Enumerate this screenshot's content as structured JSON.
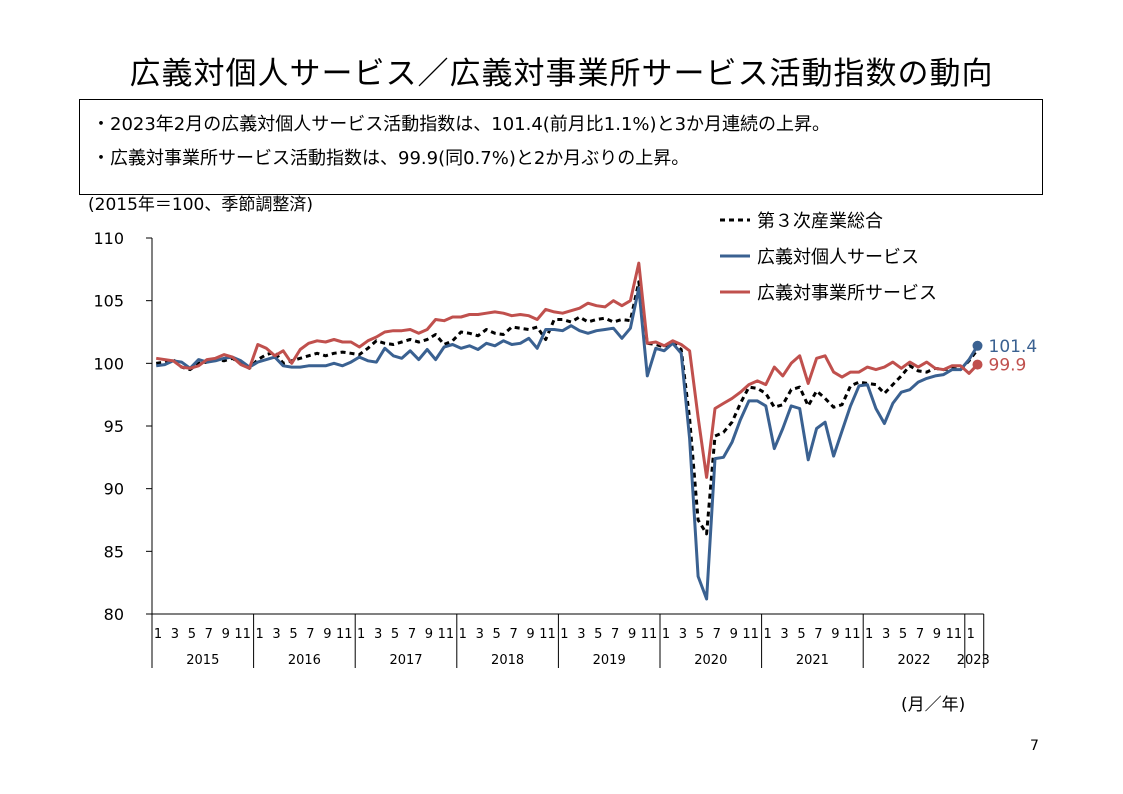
{
  "page": {
    "title": "広義対個人サービス／広義対事業所サービス活動指数の動向",
    "bullets": [
      "・2023年2月の広義対個人サービス活動指数は、101.4(前月比1.1%)と3か月連続の上昇。",
      "・広義対事業所サービス活動指数は、99.9(同0.7%)と2か月ぶりの上昇。"
    ],
    "unit_note": "(2015年＝100、季節調整済)",
    "x_unit": "(月／年)",
    "page_number": "7"
  },
  "chart_data": {
    "type": "line",
    "title": "",
    "ylabel": "(2015年＝100、季節調整済)",
    "xlabel": "(月／年)",
    "ylim": [
      80,
      110
    ],
    "yticks": [
      80,
      85,
      90,
      95,
      100,
      105,
      110
    ],
    "years": [
      "2015",
      "2016",
      "2017",
      "2018",
      "2019",
      "2020",
      "2021",
      "2022",
      "2023"
    ],
    "month_tick_labels": [
      "1",
      "3",
      "5",
      "7",
      "9",
      "11"
    ],
    "x_start": "2015-01",
    "x_end": "2023-02",
    "legend_position": "top-right",
    "series": [
      {
        "name": "第３次産業総合",
        "color": "#000000",
        "dash": true,
        "values": [
          100.0,
          100.1,
          100.3,
          99.7,
          99.5,
          100.0,
          100.1,
          100.3,
          100.2,
          100.4,
          100.0,
          99.6,
          100.3,
          100.7,
          100.9,
          100.0,
          100.2,
          100.4,
          100.6,
          100.8,
          100.6,
          100.8,
          100.9,
          100.8,
          100.7,
          101.2,
          101.8,
          101.6,
          101.5,
          101.7,
          101.9,
          101.7,
          101.9,
          102.3,
          101.5,
          101.8,
          102.5,
          102.4,
          102.2,
          102.7,
          102.4,
          102.3,
          102.9,
          102.8,
          102.7,
          102.9,
          101.9,
          103.5,
          103.5,
          103.3,
          103.7,
          103.3,
          103.5,
          103.6,
          103.3,
          103.5,
          103.4,
          106.5,
          101.6,
          101.5,
          101.3,
          101.7,
          101.1,
          95.6,
          87.5,
          86.4,
          94.2,
          94.5,
          95.3,
          96.8,
          98.1,
          98.0,
          97.6,
          96.5,
          96.7,
          97.9,
          98.1,
          96.6,
          97.8,
          97.2,
          96.5,
          96.7,
          98.2,
          98.5,
          98.4,
          98.3,
          97.6,
          98.3,
          99.0,
          99.8,
          99.4,
          99.3,
          99.6,
          99.5,
          99.6,
          99.5,
          100.2,
          101.1
        ]
      },
      {
        "name": "広義対個人サービス",
        "color": "#3a6191",
        "dash": false,
        "values": [
          99.8,
          99.9,
          100.2,
          100.1,
          99.6,
          100.3,
          100.1,
          100.2,
          100.4,
          100.5,
          100.2,
          99.7,
          100.1,
          100.3,
          100.5,
          99.8,
          99.7,
          99.7,
          99.8,
          99.8,
          99.8,
          100.0,
          99.8,
          100.1,
          100.5,
          100.2,
          100.1,
          101.2,
          100.6,
          100.4,
          101.0,
          100.3,
          101.1,
          100.3,
          101.3,
          101.5,
          101.2,
          101.4,
          101.1,
          101.6,
          101.4,
          101.8,
          101.5,
          101.6,
          102.0,
          101.2,
          102.7,
          102.7,
          102.6,
          103.0,
          102.6,
          102.4,
          102.6,
          102.7,
          102.8,
          102.0,
          102.8,
          106.0,
          99.0,
          101.2,
          101.0,
          101.6,
          100.8,
          94.0,
          83.0,
          81.2,
          92.4,
          92.5,
          93.7,
          95.5,
          97.0,
          97.0,
          96.6,
          93.2,
          94.8,
          96.6,
          96.4,
          92.3,
          94.8,
          95.3,
          92.6,
          94.6,
          96.6,
          98.2,
          98.3,
          96.4,
          95.2,
          96.8,
          97.7,
          97.9,
          98.5,
          98.8,
          99.0,
          99.1,
          99.5,
          99.5,
          100.3,
          101.4
        ]
      },
      {
        "name": "広義対事業所サービス",
        "color": "#c0504d",
        "dash": false,
        "values": [
          100.4,
          100.3,
          100.2,
          99.7,
          99.6,
          99.8,
          100.3,
          100.4,
          100.7,
          100.5,
          99.9,
          99.6,
          101.5,
          101.2,
          100.6,
          101.0,
          100.0,
          101.1,
          101.6,
          101.8,
          101.7,
          101.9,
          101.7,
          101.7,
          101.3,
          101.8,
          102.1,
          102.5,
          102.6,
          102.6,
          102.7,
          102.4,
          102.7,
          103.5,
          103.4,
          103.7,
          103.7,
          103.9,
          103.9,
          104.0,
          104.1,
          104.0,
          103.8,
          103.9,
          103.8,
          103.5,
          104.3,
          104.1,
          104.0,
          104.2,
          104.4,
          104.8,
          104.6,
          104.5,
          105.0,
          104.6,
          105.0,
          108.0,
          101.6,
          101.7,
          101.4,
          101.8,
          101.5,
          101.0,
          95.7,
          90.9,
          96.4,
          96.8,
          97.2,
          97.7,
          98.3,
          98.6,
          98.3,
          99.7,
          99.0,
          100.0,
          100.6,
          98.4,
          100.4,
          100.6,
          99.3,
          98.9,
          99.3,
          99.3,
          99.7,
          99.5,
          99.7,
          100.1,
          99.6,
          100.1,
          99.7,
          100.1,
          99.6,
          99.5,
          99.8,
          99.8,
          99.2,
          99.9
        ]
      }
    ],
    "end_labels": {
      "広義対個人サービス": "101.4",
      "広義対事業所サービス": "99.9"
    }
  }
}
